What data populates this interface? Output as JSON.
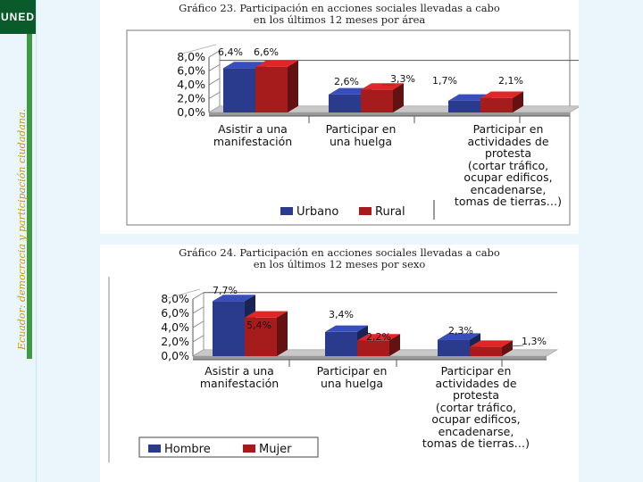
{
  "sidebar": {
    "logo_text": "UNED",
    "vertical_title": "Ecuador: democracia y participación ciudadana."
  },
  "chart_data": [
    {
      "type": "bar",
      "title_line1": "Gráfico 23. Participación en acciones sociales llevadas a cabo",
      "title_line2": "en los últimos 12 meses por área",
      "categories": [
        [
          "Asistir a una",
          "manifestación"
        ],
        [
          "Participar en",
          "una huelga"
        ],
        [
          "Participar en",
          "actividades de",
          "protesta",
          "(cortar tráfico,",
          "ocupar edificos,",
          "encadenarse,",
          "tomas de tierras…)"
        ]
      ],
      "series": [
        {
          "name": "Urbano",
          "values": [
            6.4,
            2.6,
            1.7
          ],
          "labels": [
            "6,4%",
            "2,6%",
            "1,7%"
          ],
          "color": "#2a3a8c"
        },
        {
          "name": "Rural",
          "values": [
            6.6,
            3.3,
            2.1
          ],
          "labels": [
            "6,6%",
            "3,3%",
            "2,1%"
          ],
          "color": "#a61c1c"
        }
      ],
      "yticks": [
        "0,0%",
        "2,0%",
        "4,0%",
        "6,0%",
        "8,0%"
      ],
      "ylim": [
        0,
        8
      ],
      "legend_position": "bottom"
    },
    {
      "type": "bar",
      "title_line1": "Gráfico 24. Participación en acciones sociales llevadas a cabo",
      "title_line2": "en los últimos 12 meses por sexo",
      "categories": [
        [
          "Asistir a una",
          "manifestación"
        ],
        [
          "Participar en",
          "una huelga"
        ],
        [
          "Participar en",
          "actividades de",
          "protesta",
          "(cortar tráfico,",
          "ocupar edificos,",
          "encadenarse,",
          "tomas de tierras…)"
        ]
      ],
      "series": [
        {
          "name": "Hombre",
          "values": [
            7.7,
            3.4,
            2.3
          ],
          "labels": [
            "7,7%",
            "3,4%",
            "2,3%"
          ],
          "color": "#2a3a8c"
        },
        {
          "name": "Mujer",
          "values": [
            5.4,
            2.2,
            1.3
          ],
          "labels": [
            "5,4%",
            "2,2%",
            "1,3%"
          ],
          "color": "#a61c1c"
        }
      ],
      "yticks": [
        "0,0%",
        "2,0%",
        "4,0%",
        "6,0%",
        "8,0%"
      ],
      "ylim": [
        0,
        8
      ],
      "legend_position": "bottom-left"
    }
  ]
}
